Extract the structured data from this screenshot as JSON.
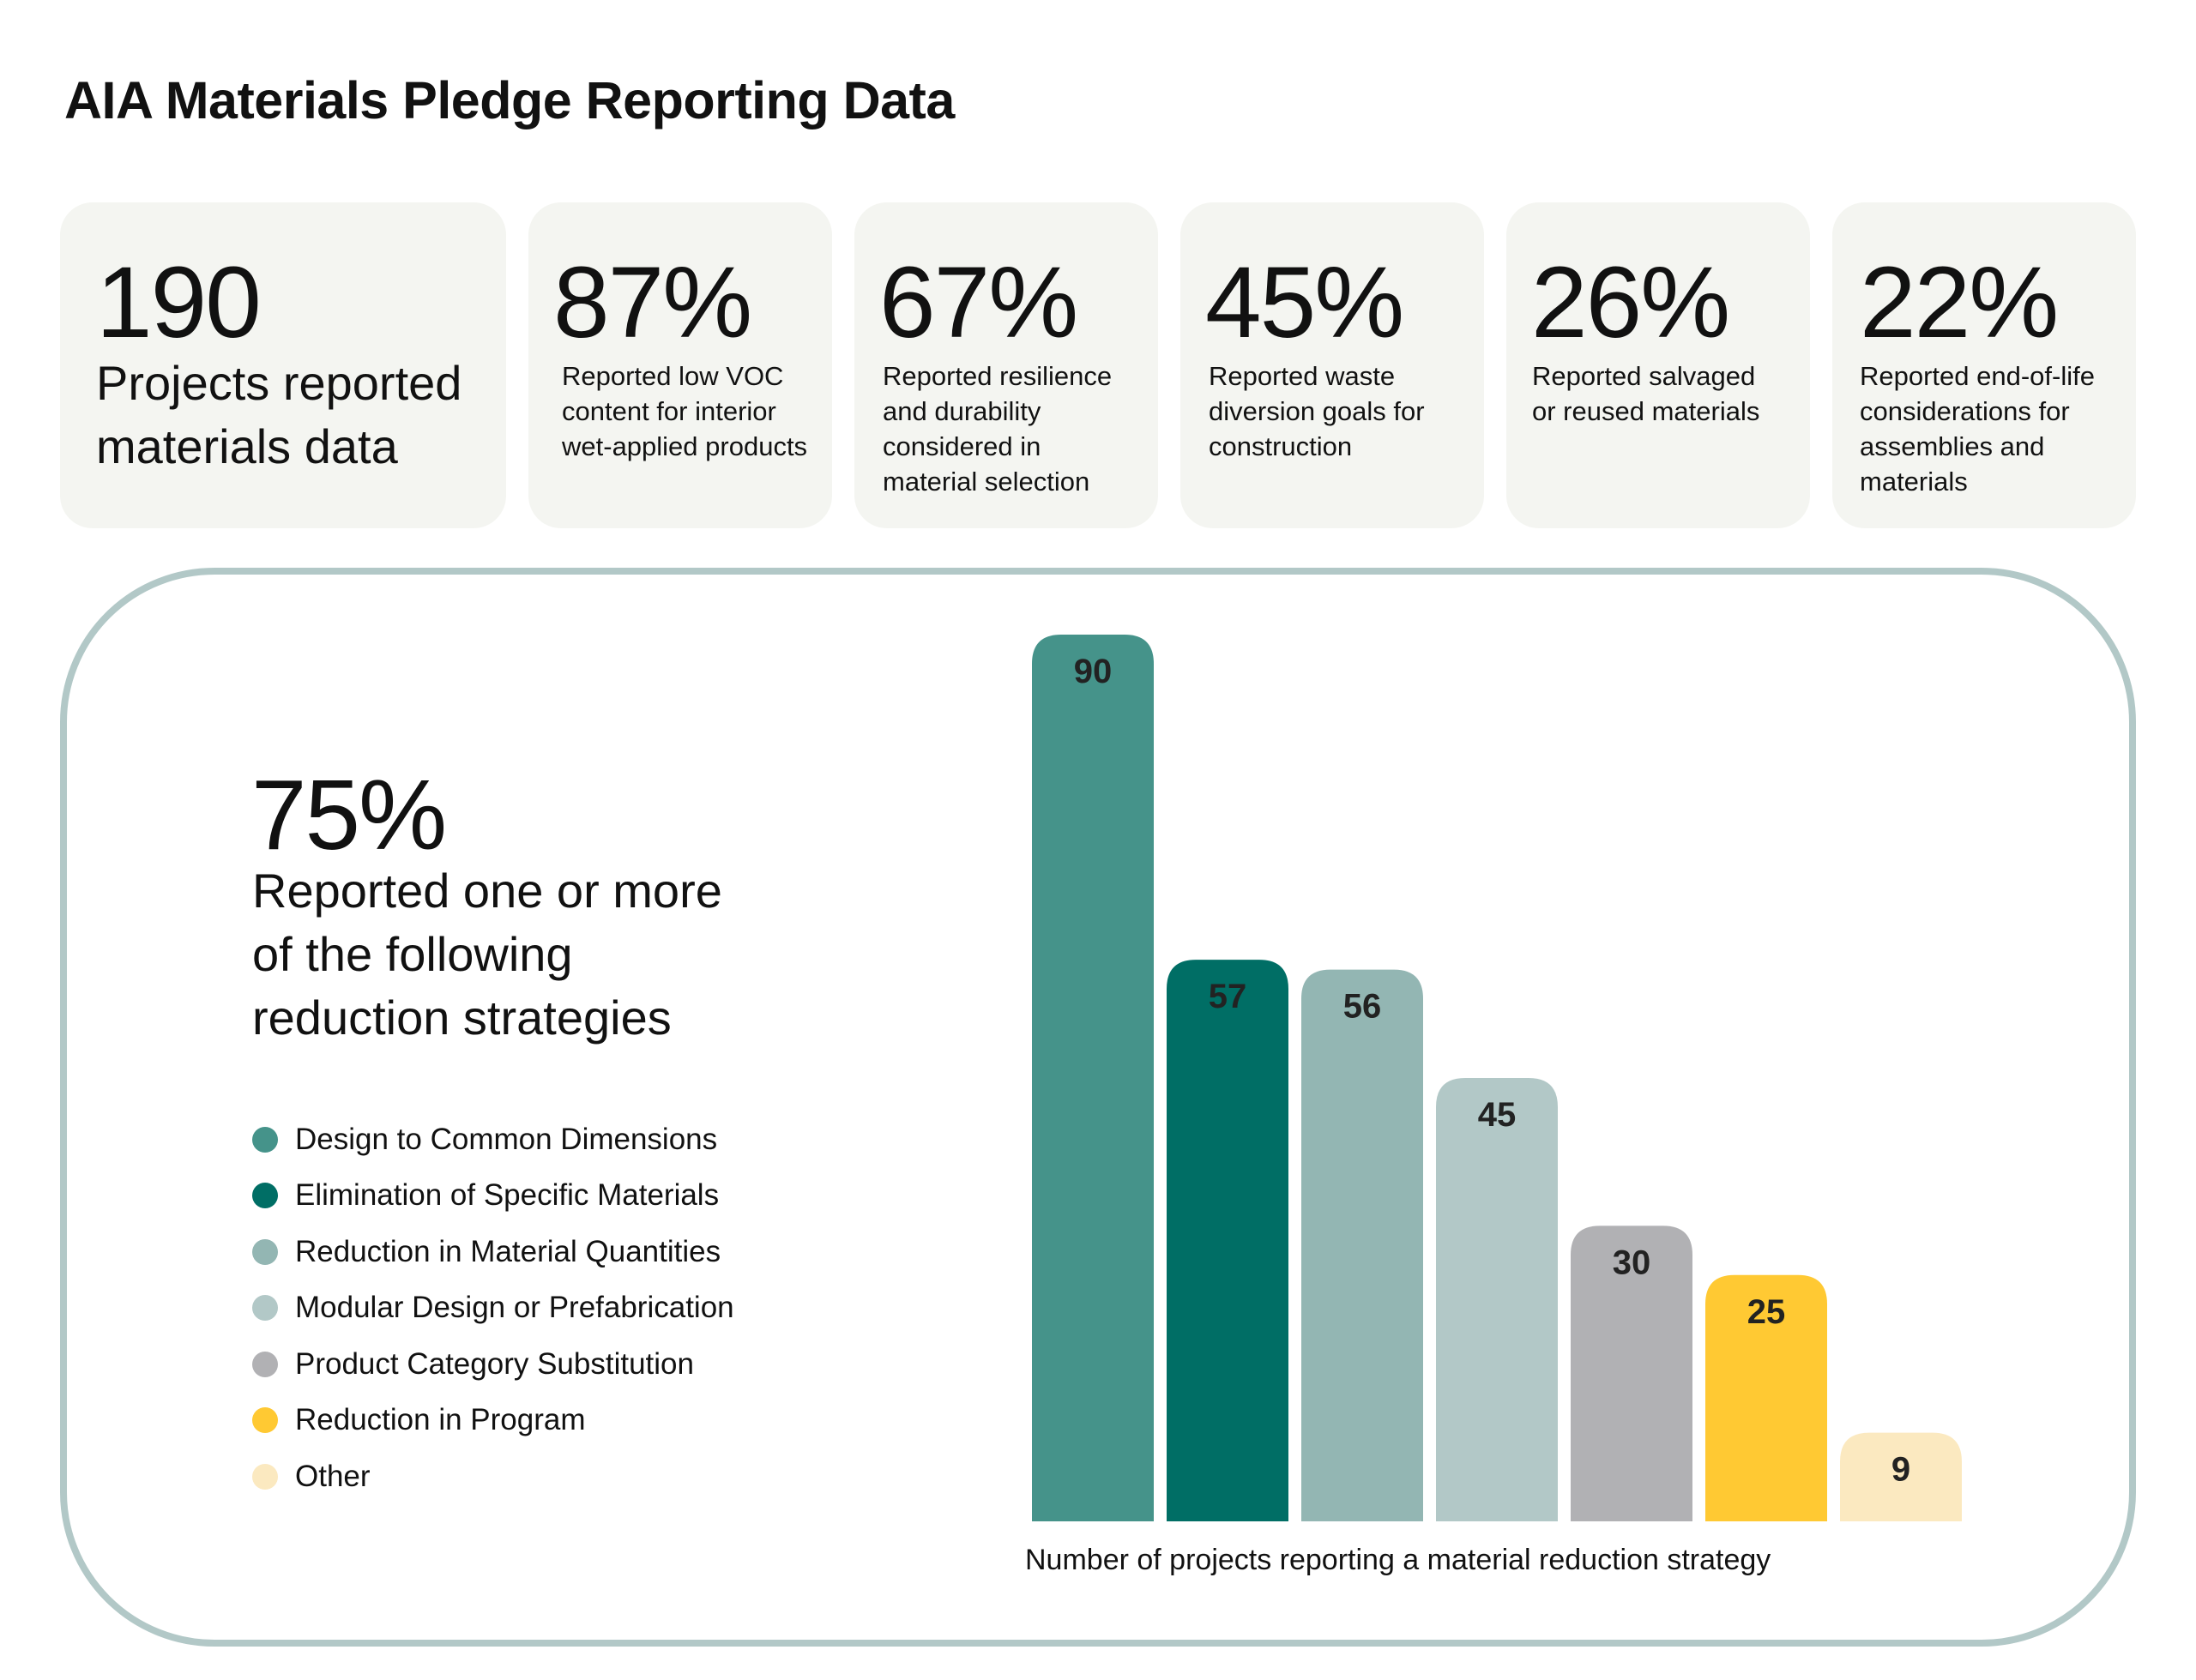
{
  "title": "AIA Materials Pledge Reporting Data",
  "stats": [
    {
      "value": "190",
      "label": "Projects reported materials data"
    },
    {
      "value": "87%",
      "label": "Reported low VOC content for interior wet-applied products"
    },
    {
      "value": "67%",
      "label": "Reported resilience and durability considered in material selection"
    },
    {
      "value": "45%",
      "label": "Reported waste diversion goals for construction"
    },
    {
      "value": "26%",
      "label": "Reported salvaged or reused materials"
    },
    {
      "value": "22%",
      "label": "Reported end-of-life considerations for assemblies and materials"
    }
  ],
  "summary": {
    "value": "75%",
    "label": "Reported one or more of the following reduction strategies"
  },
  "colors": {
    "stat_bg": "#f4f5f1",
    "panel_border": "#b2c8c7"
  },
  "chart_data": {
    "type": "bar",
    "categories": [
      "Design to Common Dimensions",
      "Elimination of Specific Materials",
      "Reduction in Material Quantities",
      "Modular Design or Prefabrication",
      "Product Category Substitution",
      "Reduction in Program",
      "Other"
    ],
    "values": [
      90,
      57,
      56,
      45,
      30,
      25,
      9
    ],
    "colors": [
      "#45938a",
      "#006e65",
      "#93b6b3",
      "#b2c8c7",
      "#b1b1b4",
      "#ffc933",
      "#fbe9c0"
    ],
    "xlabel": "Number of projects reporting a material reduction strategy",
    "ylabel": "",
    "ylim": [
      0,
      90
    ],
    "legend": "left",
    "grid": false
  }
}
